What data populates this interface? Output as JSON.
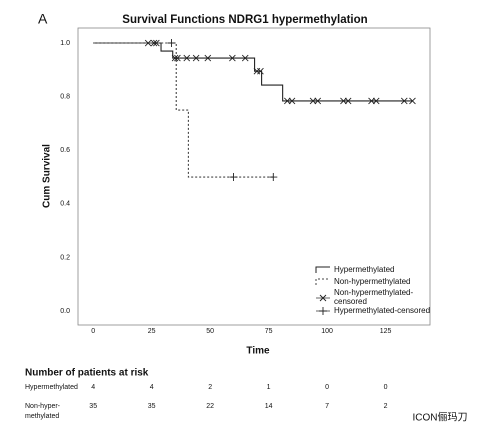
{
  "panel_label": "A",
  "chart_data": {
    "type": "km",
    "title": "Survival Functions NDRG1 hypermethylation",
    "x_label": "Time",
    "y_label": "Cum Survival",
    "xlim": [
      -6.5,
      144
    ],
    "ylim": [
      -0.052,
      1.056
    ],
    "xticks": [
      0,
      25,
      50,
      75,
      100,
      125
    ],
    "yticks": [
      {
        "value": 0,
        "label": "0.0"
      },
      {
        "value": 0.2,
        "label": "0.2"
      },
      {
        "value": 0.4,
        "label": "0.4"
      },
      {
        "value": 0.6,
        "label": "0.6"
      },
      {
        "value": 0.8,
        "label": "0.8"
      },
      {
        "value": 1,
        "label": "1.0"
      }
    ],
    "grid": false,
    "legend": "lower right",
    "series": [
      {
        "name": "Hypermethylated",
        "kind": "step",
        "dash": false,
        "color": "#222222",
        "x": [
          0,
          29,
          34,
          69,
          72,
          81,
          136.5
        ],
        "values": [
          1,
          0.97,
          0.944,
          0.895,
          0.843,
          0.784,
          0.784
        ]
      },
      {
        "name": "Non-hypermethylated",
        "kind": "step",
        "dash": true,
        "color": "#444444",
        "x": [
          0,
          35.5,
          40.7,
          77
        ],
        "values": [
          1,
          0.75,
          0.5,
          0.5
        ]
      },
      {
        "name": "Non-hypermethylated-censored",
        "kind": "x-marker",
        "color": "#222222",
        "x": [
          23.5,
          26,
          27,
          35,
          36,
          40,
          44,
          49,
          59.5,
          65,
          70,
          71.5,
          83,
          85,
          94,
          96,
          107,
          109,
          119,
          121,
          133,
          136.5
        ],
        "values": [
          1,
          1,
          1,
          0.944,
          0.944,
          0.944,
          0.944,
          0.944,
          0.944,
          0.944,
          0.895,
          0.895,
          0.784,
          0.784,
          0.784,
          0.784,
          0.784,
          0.784,
          0.784,
          0.784,
          0.784,
          0.784
        ]
      },
      {
        "name": "Hypermethylated-censored",
        "kind": "plus-marker",
        "color": "#222222",
        "x": [
          33.5,
          60,
          77
        ],
        "values": [
          1,
          0.5,
          0.5
        ]
      }
    ]
  },
  "risk_table": {
    "title": "Number of patients at risk",
    "rows": [
      {
        "label_lines": [
          "Hypermethylated"
        ],
        "values": [
          4,
          4,
          2,
          1,
          0,
          0
        ]
      },
      {
        "label_lines": [
          "Non-hyper-",
          "methylated"
        ],
        "values": [
          35,
          35,
          22,
          14,
          7,
          2
        ]
      }
    ]
  },
  "watermark": "ICON俪玛刀"
}
